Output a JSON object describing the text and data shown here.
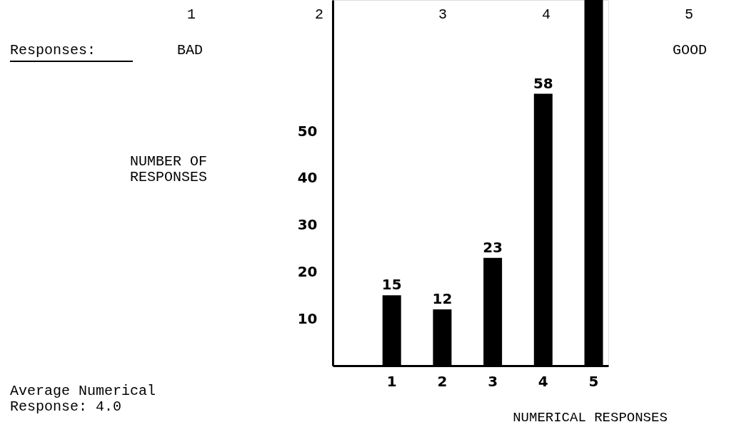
{
  "chart_data": {
    "type": "bar",
    "categories": [
      "1",
      "2",
      "3",
      "4",
      "5"
    ],
    "values": [
      15,
      12,
      23,
      58,
      78
    ],
    "value_labels": [
      "15",
      "12",
      "23",
      "58",
      null
    ],
    "color": "#000000",
    "ylim": [
      0,
      78
    ],
    "yticks": [
      10,
      20,
      30,
      40,
      50
    ],
    "xlabel": "NUMERICAL RESPONSES",
    "annotations": [
      "1",
      "2",
      "3",
      "4",
      "5",
      "Responses:",
      "BAD",
      "GOOD",
      "Average Numerical\nResponse: 4.0",
      "NUMBER OF\nRESPONSES"
    ]
  }
}
